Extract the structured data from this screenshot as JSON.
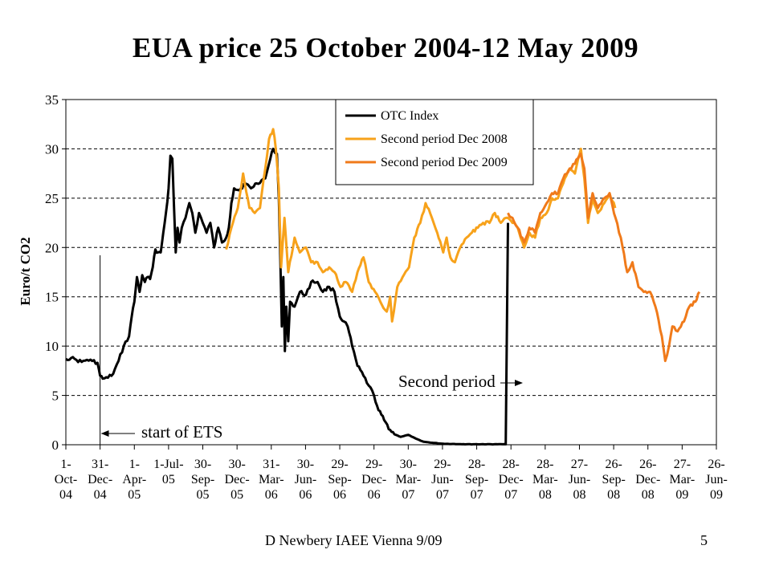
{
  "slide": {
    "title": "EUA price 25 October 2004-12 May 2009",
    "footer": "D Newbery IAEE Vienna 9/09",
    "page_number": "5"
  },
  "chart_data": {
    "type": "line",
    "title": "EUA price 25 October 2004-12 May 2009",
    "ylabel": "Euro/t CO2",
    "xlabel": "",
    "ylim": [
      0,
      35
    ],
    "yticks": [
      0,
      5,
      10,
      15,
      20,
      25,
      30,
      35
    ],
    "xlim": [
      "2004-10-01",
      "2009-06-26"
    ],
    "grid": "horizontal dashed",
    "legend_position": "top-right",
    "xtick_labels": [
      {
        "date": "2004-10-01",
        "lines": [
          "1-",
          "Oct-",
          "04"
        ]
      },
      {
        "date": "2004-12-31",
        "lines": [
          "31-",
          "Dec-",
          "04"
        ]
      },
      {
        "date": "2005-04-01",
        "lines": [
          "1-",
          "Apr-",
          "05"
        ]
      },
      {
        "date": "2005-07-01",
        "lines": [
          "1-Jul-",
          "05"
        ]
      },
      {
        "date": "2005-09-30",
        "lines": [
          "30-",
          "Sep-",
          "05"
        ]
      },
      {
        "date": "2005-12-30",
        "lines": [
          "30-",
          "Dec-",
          "05"
        ]
      },
      {
        "date": "2006-03-31",
        "lines": [
          "31-",
          "Mar-",
          "06"
        ]
      },
      {
        "date": "2006-06-30",
        "lines": [
          "30-",
          "Jun-",
          "06"
        ]
      },
      {
        "date": "2006-09-29",
        "lines": [
          "29-",
          "Sep-",
          "06"
        ]
      },
      {
        "date": "2006-12-29",
        "lines": [
          "29-",
          "Dec-",
          "06"
        ]
      },
      {
        "date": "2007-03-30",
        "lines": [
          "30-",
          "Mar-",
          "07"
        ]
      },
      {
        "date": "2007-06-29",
        "lines": [
          "29-",
          "Jun-",
          "07"
        ]
      },
      {
        "date": "2007-09-28",
        "lines": [
          "28-",
          "Sep-",
          "07"
        ]
      },
      {
        "date": "2007-12-28",
        "lines": [
          "28-",
          "Dec-",
          "07"
        ]
      },
      {
        "date": "2008-03-28",
        "lines": [
          "28-",
          "Mar-",
          "08"
        ]
      },
      {
        "date": "2008-06-27",
        "lines": [
          "27-",
          "Jun-",
          "08"
        ]
      },
      {
        "date": "2008-09-26",
        "lines": [
          "26-",
          "Sep-",
          "08"
        ]
      },
      {
        "date": "2008-12-26",
        "lines": [
          "26-",
          "Dec-",
          "08"
        ]
      },
      {
        "date": "2009-03-27",
        "lines": [
          "27-",
          "Mar-",
          "09"
        ]
      },
      {
        "date": "2009-06-26",
        "lines": [
          "26-",
          "Jun-",
          "09"
        ]
      }
    ],
    "series": [
      {
        "name": "OTC Index",
        "color": "#000000",
        "points": [
          [
            "2004-10-01",
            8.7
          ],
          [
            "2004-10-15",
            8.8
          ],
          [
            "2004-10-29",
            8.6
          ],
          [
            "2004-11-12",
            8.4
          ],
          [
            "2004-11-26",
            8.6
          ],
          [
            "2004-12-10",
            8.5
          ],
          [
            "2004-12-24",
            8.3
          ],
          [
            "2004-12-31",
            7.0
          ],
          [
            "2005-01-07",
            6.7
          ],
          [
            "2005-01-21",
            6.8
          ],
          [
            "2005-02-04",
            7.2
          ],
          [
            "2005-02-18",
            8.5
          ],
          [
            "2005-03-04",
            10.0
          ],
          [
            "2005-03-18",
            11.0
          ],
          [
            "2005-03-25",
            13.0
          ],
          [
            "2005-04-01",
            14.5
          ],
          [
            "2005-04-08",
            17.0
          ],
          [
            "2005-04-15",
            15.5
          ],
          [
            "2005-04-22",
            17.2
          ],
          [
            "2005-04-29",
            16.5
          ],
          [
            "2005-05-06",
            17.0
          ],
          [
            "2005-05-13",
            16.8
          ],
          [
            "2005-05-20",
            18.0
          ],
          [
            "2005-05-27",
            19.8
          ],
          [
            "2005-06-03",
            19.5
          ],
          [
            "2005-06-10",
            19.5
          ],
          [
            "2005-06-17",
            21.5
          ],
          [
            "2005-06-24",
            23.5
          ],
          [
            "2005-07-01",
            26.0
          ],
          [
            "2005-07-06",
            29.3
          ],
          [
            "2005-07-11",
            29.0
          ],
          [
            "2005-07-15",
            24.5
          ],
          [
            "2005-07-20",
            19.5
          ],
          [
            "2005-07-25",
            22.0
          ],
          [
            "2005-07-30",
            20.5
          ],
          [
            "2005-08-05",
            22.0
          ],
          [
            "2005-08-15",
            23.0
          ],
          [
            "2005-08-25",
            24.5
          ],
          [
            "2005-09-02",
            23.5
          ],
          [
            "2005-09-10",
            21.5
          ],
          [
            "2005-09-20",
            23.5
          ],
          [
            "2005-09-30",
            22.5
          ],
          [
            "2005-10-10",
            21.5
          ],
          [
            "2005-10-20",
            22.5
          ],
          [
            "2005-10-30",
            20.0
          ],
          [
            "2005-11-10",
            22.0
          ],
          [
            "2005-11-20",
            20.5
          ],
          [
            "2005-12-01",
            21.0
          ],
          [
            "2005-12-08",
            22.0
          ],
          [
            "2005-12-15",
            24.5
          ],
          [
            "2005-12-22",
            26.0
          ],
          [
            "2006-01-05",
            25.8
          ],
          [
            "2006-01-20",
            26.5
          ],
          [
            "2006-02-05",
            26.0
          ],
          [
            "2006-02-20",
            26.5
          ],
          [
            "2006-03-05",
            26.8
          ],
          [
            "2006-03-15",
            27.0
          ],
          [
            "2006-03-25",
            28.5
          ],
          [
            "2006-04-05",
            30.0
          ],
          [
            "2006-04-15",
            29.5
          ],
          [
            "2006-04-20",
            25.0
          ],
          [
            "2006-04-24",
            19.0
          ],
          [
            "2006-04-28",
            12.0
          ],
          [
            "2006-05-02",
            17.0
          ],
          [
            "2006-05-06",
            9.5
          ],
          [
            "2006-05-10",
            14.0
          ],
          [
            "2006-05-15",
            10.5
          ],
          [
            "2006-05-20",
            14.5
          ],
          [
            "2006-06-01",
            14.0
          ],
          [
            "2006-06-15",
            15.5
          ],
          [
            "2006-07-01",
            15.2
          ],
          [
            "2006-07-15",
            16.5
          ],
          [
            "2006-08-01",
            16.5
          ],
          [
            "2006-08-15",
            15.5
          ],
          [
            "2006-09-01",
            16.0
          ],
          [
            "2006-09-15",
            15.5
          ],
          [
            "2006-09-29",
            13.0
          ],
          [
            "2006-10-10",
            12.5
          ],
          [
            "2006-10-20",
            12.0
          ],
          [
            "2006-11-01",
            10.0
          ],
          [
            "2006-11-15",
            8.0
          ],
          [
            "2006-12-01",
            7.0
          ],
          [
            "2006-12-15",
            6.0
          ],
          [
            "2006-12-29",
            5.0
          ],
          [
            "2007-01-10",
            3.5
          ],
          [
            "2007-01-25",
            2.5
          ],
          [
            "2007-02-10",
            1.5
          ],
          [
            "2007-02-25",
            1.0
          ],
          [
            "2007-03-10",
            0.8
          ],
          [
            "2007-03-30",
            1.0
          ],
          [
            "2007-04-20",
            0.6
          ],
          [
            "2007-05-10",
            0.3
          ],
          [
            "2007-06-01",
            0.2
          ],
          [
            "2007-07-01",
            0.1
          ],
          [
            "2007-09-01",
            0.05
          ],
          [
            "2007-12-14",
            0.05
          ],
          [
            "2007-12-20",
            22.5
          ]
        ]
      },
      {
        "name": "Second period Dec 2008",
        "color": "#F7A21B",
        "points": [
          [
            "2005-12-01",
            19.8
          ],
          [
            "2005-12-15",
            22.0
          ],
          [
            "2006-01-01",
            24.0
          ],
          [
            "2006-01-15",
            27.5
          ],
          [
            "2006-02-01",
            24.0
          ],
          [
            "2006-02-15",
            23.5
          ],
          [
            "2006-03-01",
            24.0
          ],
          [
            "2006-03-15",
            28.0
          ],
          [
            "2006-03-25",
            31.0
          ],
          [
            "2006-04-05",
            32.0
          ],
          [
            "2006-04-12",
            30.0
          ],
          [
            "2006-04-20",
            26.0
          ],
          [
            "2006-04-26",
            18.0
          ],
          [
            "2006-05-05",
            23.0
          ],
          [
            "2006-05-15",
            17.5
          ],
          [
            "2006-06-01",
            21.0
          ],
          [
            "2006-06-15",
            19.5
          ],
          [
            "2006-07-01",
            20.0
          ],
          [
            "2006-07-15",
            18.5
          ],
          [
            "2006-08-01",
            18.5
          ],
          [
            "2006-08-15",
            17.5
          ],
          [
            "2006-09-01",
            18.0
          ],
          [
            "2006-09-15",
            17.5
          ],
          [
            "2006-10-01",
            16.0
          ],
          [
            "2006-10-15",
            16.5
          ],
          [
            "2006-11-01",
            15.5
          ],
          [
            "2006-11-15",
            17.5
          ],
          [
            "2006-12-01",
            19.0
          ],
          [
            "2006-12-15",
            16.5
          ],
          [
            "2007-01-01",
            15.5
          ],
          [
            "2007-01-15",
            14.5
          ],
          [
            "2007-02-01",
            13.5
          ],
          [
            "2007-02-10",
            15.0
          ],
          [
            "2007-02-15",
            12.5
          ],
          [
            "2007-03-01",
            16.0
          ],
          [
            "2007-03-15",
            17.0
          ],
          [
            "2007-04-01",
            18.0
          ],
          [
            "2007-04-15",
            21.0
          ],
          [
            "2007-05-01",
            22.5
          ],
          [
            "2007-05-15",
            24.5
          ],
          [
            "2007-06-01",
            23.0
          ],
          [
            "2007-06-15",
            21.5
          ],
          [
            "2007-07-01",
            19.5
          ],
          [
            "2007-07-10",
            21.0
          ],
          [
            "2007-07-20",
            19.0
          ],
          [
            "2007-08-01",
            18.5
          ],
          [
            "2007-08-15",
            20.0
          ],
          [
            "2007-09-01",
            21.0
          ],
          [
            "2007-09-15",
            21.5
          ],
          [
            "2007-10-01",
            22.0
          ],
          [
            "2007-10-15",
            22.5
          ],
          [
            "2007-11-01",
            22.5
          ],
          [
            "2007-11-15",
            23.5
          ],
          [
            "2007-12-01",
            22.5
          ],
          [
            "2007-12-15",
            23.0
          ],
          [
            "2008-01-01",
            22.5
          ],
          [
            "2008-01-15",
            22.0
          ],
          [
            "2008-02-01",
            20.0
          ],
          [
            "2008-02-15",
            21.5
          ],
          [
            "2008-03-01",
            21.0
          ],
          [
            "2008-03-15",
            23.0
          ],
          [
            "2008-04-01",
            23.5
          ],
          [
            "2008-04-15",
            25.0
          ],
          [
            "2008-05-01",
            25.0
          ],
          [
            "2008-05-15",
            26.5
          ],
          [
            "2008-06-01",
            28.0
          ],
          [
            "2008-06-15",
            27.5
          ],
          [
            "2008-07-01",
            30.0
          ],
          [
            "2008-07-10",
            27.0
          ],
          [
            "2008-07-20",
            22.5
          ],
          [
            "2008-08-01",
            25.0
          ],
          [
            "2008-08-15",
            23.5
          ],
          [
            "2008-09-01",
            24.5
          ],
          [
            "2008-09-15",
            25.5
          ],
          [
            "2008-09-30",
            24.0
          ]
        ]
      },
      {
        "name": "Second period Dec 2009",
        "color": "#F07A1A",
        "points": [
          [
            "2007-12-20",
            23.5
          ],
          [
            "2008-01-01",
            23.0
          ],
          [
            "2008-01-15",
            22.0
          ],
          [
            "2008-02-01",
            20.5
          ],
          [
            "2008-02-15",
            22.0
          ],
          [
            "2008-03-01",
            21.5
          ],
          [
            "2008-03-15",
            23.5
          ],
          [
            "2008-04-01",
            24.5
          ],
          [
            "2008-04-15",
            25.5
          ],
          [
            "2008-05-01",
            25.5
          ],
          [
            "2008-05-15",
            27.0
          ],
          [
            "2008-06-01",
            28.0
          ],
          [
            "2008-06-15",
            28.5
          ],
          [
            "2008-06-30",
            29.5
          ],
          [
            "2008-07-10",
            28.0
          ],
          [
            "2008-07-20",
            23.0
          ],
          [
            "2008-08-01",
            25.5
          ],
          [
            "2008-08-15",
            24.0
          ],
          [
            "2008-09-01",
            25.0
          ],
          [
            "2008-09-15",
            25.5
          ],
          [
            "2008-10-01",
            23.0
          ],
          [
            "2008-10-15",
            21.0
          ],
          [
            "2008-11-01",
            17.5
          ],
          [
            "2008-11-15",
            18.5
          ],
          [
            "2008-12-01",
            16.0
          ],
          [
            "2008-12-15",
            15.5
          ],
          [
            "2009-01-01",
            15.5
          ],
          [
            "2009-01-15",
            14.0
          ],
          [
            "2009-02-01",
            11.0
          ],
          [
            "2009-02-10",
            8.5
          ],
          [
            "2009-02-20",
            10.0
          ],
          [
            "2009-03-01",
            12.0
          ],
          [
            "2009-03-15",
            11.5
          ],
          [
            "2009-04-01",
            12.5
          ],
          [
            "2009-04-15",
            14.0
          ],
          [
            "2009-05-01",
            14.5
          ],
          [
            "2009-05-12",
            15.5
          ]
        ]
      }
    ],
    "annotations": [
      {
        "text": "start of ETS",
        "arrow": "left"
      },
      {
        "text": "Second period",
        "arrow": "right"
      }
    ]
  }
}
